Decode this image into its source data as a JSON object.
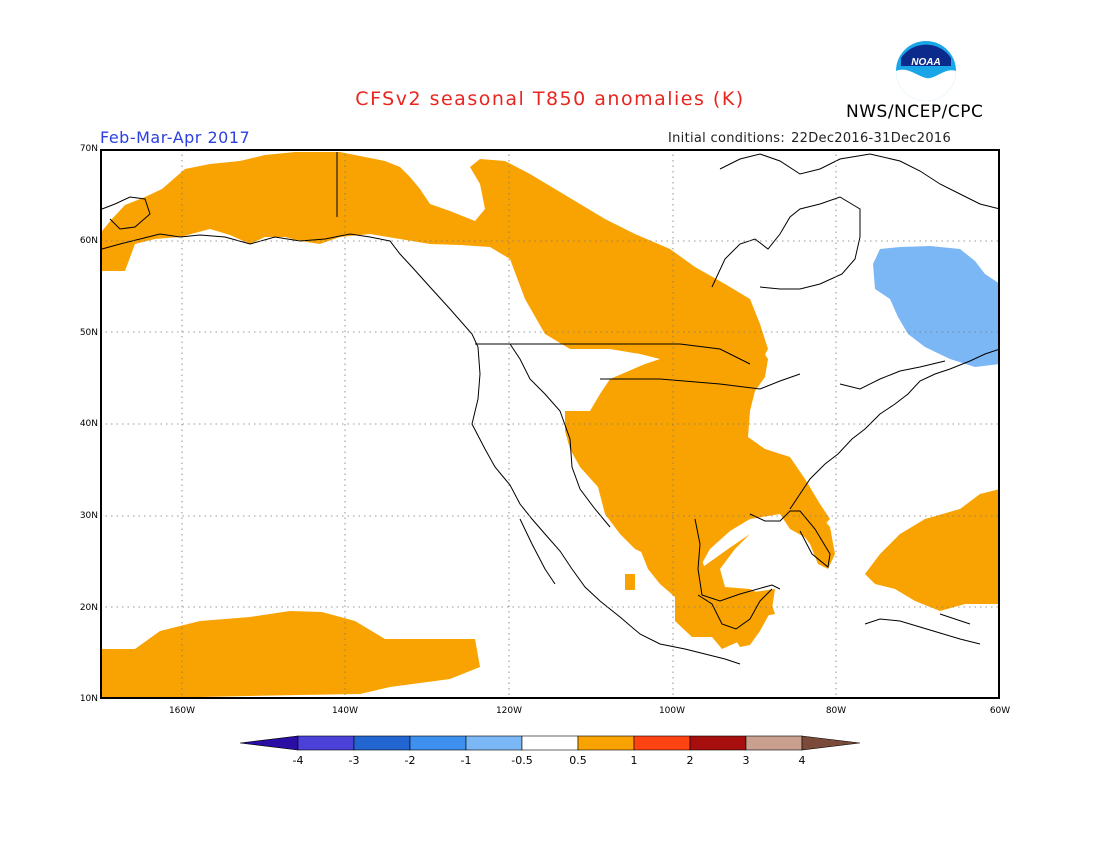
{
  "map": {
    "title": "CFSv2 seasonal T850 anomalies (K)",
    "agency": "NWS/NCEP/CPC",
    "logo_text": "NOAA",
    "period": "Feb-Mar-Apr 2017",
    "initial_conditions_label": "Initial conditions:",
    "initial_conditions_value": "22Dec2016-31Dec2016",
    "lat_labels": [
      "70N",
      "60N",
      "50N",
      "40N",
      "30N",
      "20N",
      "10N"
    ],
    "lon_labels": [
      "160W",
      "140W",
      "120W",
      "100W",
      "80W",
      "60W"
    ],
    "extent": {
      "lon_min": -170,
      "lon_max": -60,
      "lat_min": 10,
      "lat_max": 70
    },
    "grid_lines": true
  },
  "legend": {
    "tick_labels": [
      "-4",
      "-3",
      "-2",
      "-1",
      "-0.5",
      "0.5",
      "1",
      "2",
      "3",
      "4"
    ],
    "bins": [
      {
        "range": "<-4",
        "color": "#2a0ea3"
      },
      {
        "range": "-4 to -3",
        "color": "#4b40d8"
      },
      {
        "range": "-3 to -2",
        "color": "#2366d2"
      },
      {
        "range": "-2 to -1",
        "color": "#3d90ed"
      },
      {
        "range": "-1 to -0.5",
        "color": "#7bb7f5"
      },
      {
        "range": "-0.5 to 0.5",
        "color": "#ffffff"
      },
      {
        "range": "0.5 to 1",
        "color": "#f9a302"
      },
      {
        "range": "1 to 2",
        "color": "#ff4313"
      },
      {
        "range": "2 to 3",
        "color": "#a70e0e"
      },
      {
        "range": "3 to 4",
        "color": "#c9a090"
      },
      {
        "range": ">4",
        "color": "#7a4b3a"
      }
    ]
  },
  "anomaly_regions": [
    {
      "bin": "0.5 to 1",
      "area": "Alaska, Yukon and western Canada to Hudson Bay"
    },
    {
      "bin": "0.5 to 1",
      "area": "central and southern US Plains, Mississippi valley, Gulf Coast, Florida"
    },
    {
      "bin": "0.5 to 1",
      "area": "Mexico and Central America"
    },
    {
      "bin": "0.5 to 1",
      "area": "subtropical central North Pacific"
    },
    {
      "bin": "0.5 to 1",
      "area": "western subtropical North Atlantic"
    },
    {
      "bin": "-1 to -0.5",
      "area": "northern Quebec and Labrador"
    }
  ]
}
